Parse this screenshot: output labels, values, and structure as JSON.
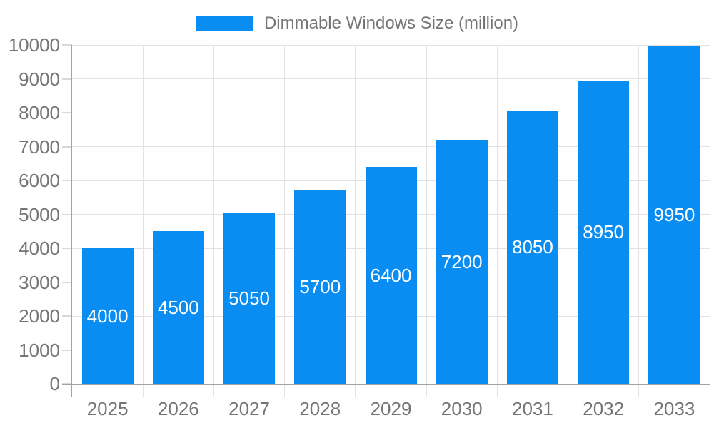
{
  "chart_data": {
    "type": "bar",
    "title": "Dimmable Windows Size (million)",
    "legend_entries": [
      "Dimmable Windows Size (million)"
    ],
    "legend_position": "top-center",
    "categories": [
      "2025",
      "2026",
      "2027",
      "2028",
      "2029",
      "2030",
      "2031",
      "2032",
      "2033"
    ],
    "values": [
      4000,
      4500,
      5050,
      5700,
      6400,
      7200,
      8050,
      8950,
      9950
    ],
    "value_labels": "inside-center",
    "xlabel": "",
    "ylabel": "",
    "ylim": [
      0,
      10000
    ],
    "ytick_step": 1000,
    "grid": true
  },
  "style": {
    "bar_color": "#0a8df2",
    "grid_line_color": "#e3e3e3",
    "axis_line_color": "#a3a3a3",
    "tick_mark_color": "#d9d9d9",
    "label_color": "#757575",
    "value_label_color": "#ffffff",
    "background_color": "#ffffff"
  }
}
